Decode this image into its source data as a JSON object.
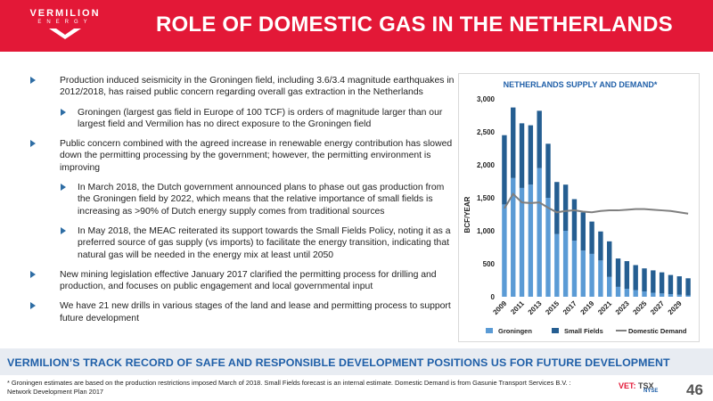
{
  "header": {
    "logo_name": "VERMILION",
    "logo_sub": "ENERGY",
    "title": "ROLE OF DOMESTIC GAS IN THE NETHERLANDS",
    "brand_color": "#e31837"
  },
  "bullets": [
    {
      "level": 1,
      "text": "Production induced seismicity in the Groningen field, including 3.6/3.4 magnitude earthquakes in 2012/2018, has raised public concern regarding overall gas extraction in the Netherlands"
    },
    {
      "level": 2,
      "text": "Groningen (largest gas field in Europe of 100 TCF) is orders of magnitude larger than our largest field and Vermilion has no direct exposure to the Groningen field"
    },
    {
      "level": 1,
      "text": "Public concern combined with the agreed increase in renewable energy contribution has slowed down the permitting processing by the government; however, the permitting environment is improving"
    },
    {
      "level": 2,
      "text": "In March 2018, the Dutch government announced plans to phase out gas production from the Groningen field by 2022, which means that the relative importance of small fields is increasing as >90% of Dutch energy supply comes from traditional sources"
    },
    {
      "level": 2,
      "text": "In May 2018, the MEAC reiterated its support towards the Small Fields Policy, noting it as a preferred source of gas supply (vs imports) to facilitate the energy transition, indicating that natural gas will be needed in the energy mix at least until 2050"
    },
    {
      "level": 1,
      "text": "New mining legislation effective January 2017 clarified the permitting process for drilling and production, and focuses on public engagement and local governmental input"
    },
    {
      "level": 1,
      "text": "We have 21 new drills in various stages of the land and lease and permitting process to support future development"
    }
  ],
  "chart_data": {
    "type": "bar",
    "title": "NETHERLANDS SUPPLY AND DEMAND*",
    "ylabel": "BCF/YEAR",
    "xlabel": "",
    "ylim": [
      0,
      3000
    ],
    "yticks": [
      "0",
      "500",
      "1,000",
      "1,500",
      "2,000",
      "2,500",
      "3,000"
    ],
    "ytick_values": [
      0,
      500,
      1000,
      1500,
      2000,
      2500,
      3000
    ],
    "categories": [
      "2009",
      "2010",
      "2011",
      "2012",
      "2013",
      "2014",
      "2015",
      "2016",
      "2017",
      "2018",
      "2019",
      "2020",
      "2021",
      "2022",
      "2023",
      "2024",
      "2025",
      "2026",
      "2027",
      "2028",
      "2029",
      "2030"
    ],
    "xtick_labels": [
      "2009",
      "2011",
      "2013",
      "2015",
      "2017",
      "2019",
      "2021",
      "2023",
      "2025",
      "2027",
      "2029"
    ],
    "stacked": true,
    "series": [
      {
        "name": "Groningen",
        "color": "#5b9bd5",
        "values": [
          1400,
          1800,
          1650,
          1700,
          1950,
          1500,
          950,
          1000,
          850,
          700,
          650,
          550,
          300,
          150,
          120,
          100,
          80,
          60,
          50,
          40,
          30,
          20
        ]
      },
      {
        "name": "Small Fields",
        "color": "#255e91",
        "values": [
          1050,
          1070,
          980,
          900,
          870,
          820,
          790,
          700,
          630,
          580,
          490,
          440,
          540,
          430,
          420,
          380,
          350,
          340,
          320,
          290,
          280,
          260
        ]
      },
      {
        "name": "Domestic Demand",
        "color": "#7f7f7f",
        "type": "line",
        "values": [
          1340,
          1560,
          1430,
          1420,
          1430,
          1350,
          1280,
          1300,
          1310,
          1290,
          1280,
          1300,
          1310,
          1310,
          1320,
          1330,
          1330,
          1320,
          1310,
          1300,
          1280,
          1260
        ]
      }
    ],
    "legend": [
      "Groningen",
      "Small Fields",
      "Domestic Demand"
    ],
    "legend_position": "bottom",
    "grid": false
  },
  "banner": "VERMILION’S TRACK RECORD OF SAFE AND RESPONSIBLE DEVELOPMENT POSITIONS US FOR FUTURE DEVELOPMENT",
  "footnote": "* Groningen estimates are based on the production restrictions imposed March of 2018. Small Fields forecast is an internal estimate. Domestic Demand is from Gasunie Transport Services B.V. : Network Development Plan 2017",
  "ticker": {
    "vet": "VET:",
    "tsx": "TSX",
    "nyse": "NYSE"
  },
  "page_number": "46"
}
